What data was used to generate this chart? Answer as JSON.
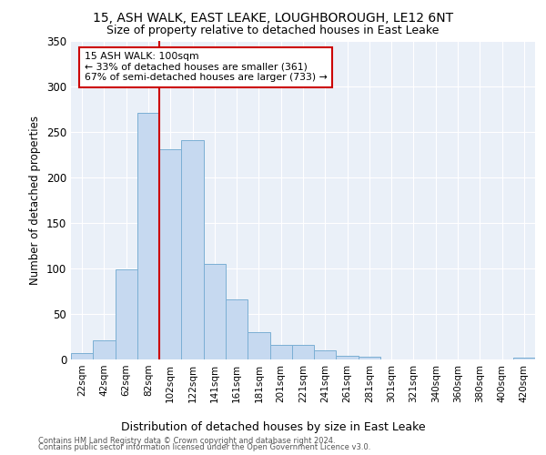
{
  "title1": "15, ASH WALK, EAST LEAKE, LOUGHBOROUGH, LE12 6NT",
  "title2": "Size of property relative to detached houses in East Leake",
  "xlabel": "Distribution of detached houses by size in East Leake",
  "ylabel": "Number of detached properties",
  "bin_labels": [
    "22sqm",
    "42sqm",
    "62sqm",
    "82sqm",
    "102sqm",
    "122sqm",
    "141sqm",
    "161sqm",
    "181sqm",
    "201sqm",
    "221sqm",
    "241sqm",
    "261sqm",
    "281sqm",
    "301sqm",
    "321sqm",
    "340sqm",
    "360sqm",
    "380sqm",
    "400sqm",
    "420sqm"
  ],
  "bar_values": [
    7,
    21,
    99,
    271,
    231,
    241,
    105,
    66,
    30,
    16,
    16,
    10,
    4,
    3,
    0,
    0,
    0,
    0,
    0,
    0,
    2
  ],
  "bar_color": "#c6d9f0",
  "bar_edgecolor": "#7bafd4",
  "vline_color": "#cc0000",
  "annotation_text": "15 ASH WALK: 100sqm\n← 33% of detached houses are smaller (361)\n67% of semi-detached houses are larger (733) →",
  "annotation_box_color": "#ffffff",
  "annotation_box_edgecolor": "#cc0000",
  "ylim": [
    0,
    350
  ],
  "yticks": [
    0,
    50,
    100,
    150,
    200,
    250,
    300,
    350
  ],
  "plot_bg_color": "#eaf0f8",
  "footer1": "Contains HM Land Registry data © Crown copyright and database right 2024.",
  "footer2": "Contains public sector information licensed under the Open Government Licence v3.0.",
  "bin_width": 20
}
